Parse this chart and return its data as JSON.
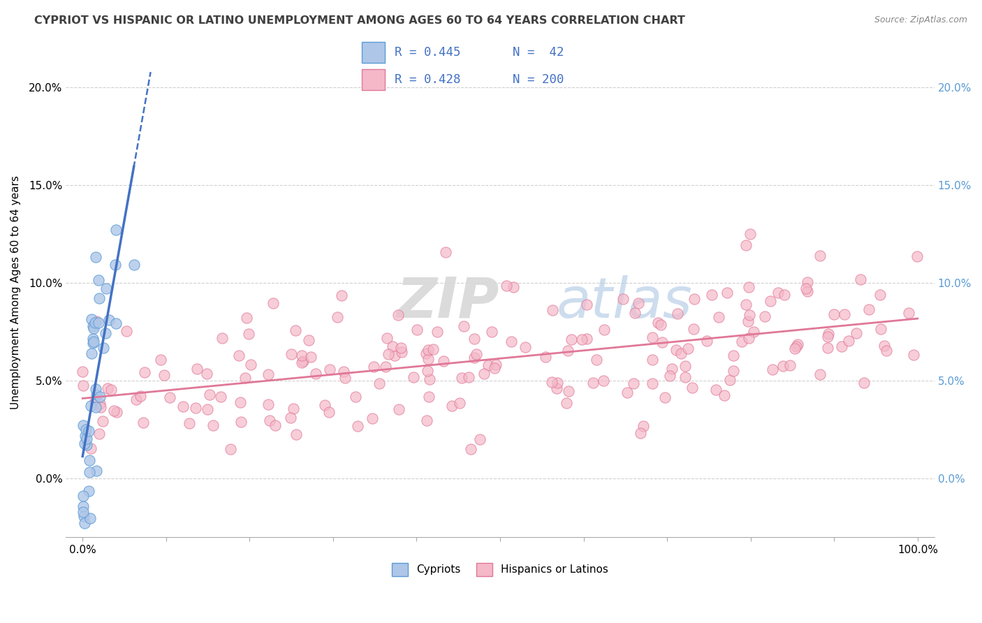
{
  "title": "CYPRIOT VS HISPANIC OR LATINO UNEMPLOYMENT AMONG AGES 60 TO 64 YEARS CORRELATION CHART",
  "source": "Source: ZipAtlas.com",
  "ylabel": "Unemployment Among Ages 60 to 64 years",
  "legend_label1": "Cypriots",
  "legend_label2": "Hispanics or Latinos",
  "color_cypriot_fill": "#aec6e8",
  "color_cypriot_edge": "#5b9bd5",
  "color_cypriot_line": "#4472c4",
  "color_hispanic_fill": "#f4b8c8",
  "color_hispanic_edge": "#e07898",
  "color_hispanic_line": "#e07898",
  "color_right_ticks": "#5b9bd5",
  "watermark_zip": "ZIP",
  "watermark_atlas": "atlas",
  "xlim": [
    -2,
    102
  ],
  "ylim": [
    -3,
    22
  ],
  "ytick_values": [
    0,
    5,
    10,
    15,
    20
  ],
  "xtick_values": [
    0,
    10,
    20,
    30,
    40,
    50,
    60,
    70,
    80,
    90,
    100
  ],
  "legend_r1": "R = 0.445",
  "legend_n1": "N =  42",
  "legend_r2": "R = 0.428",
  "legend_n2": "N = 200"
}
